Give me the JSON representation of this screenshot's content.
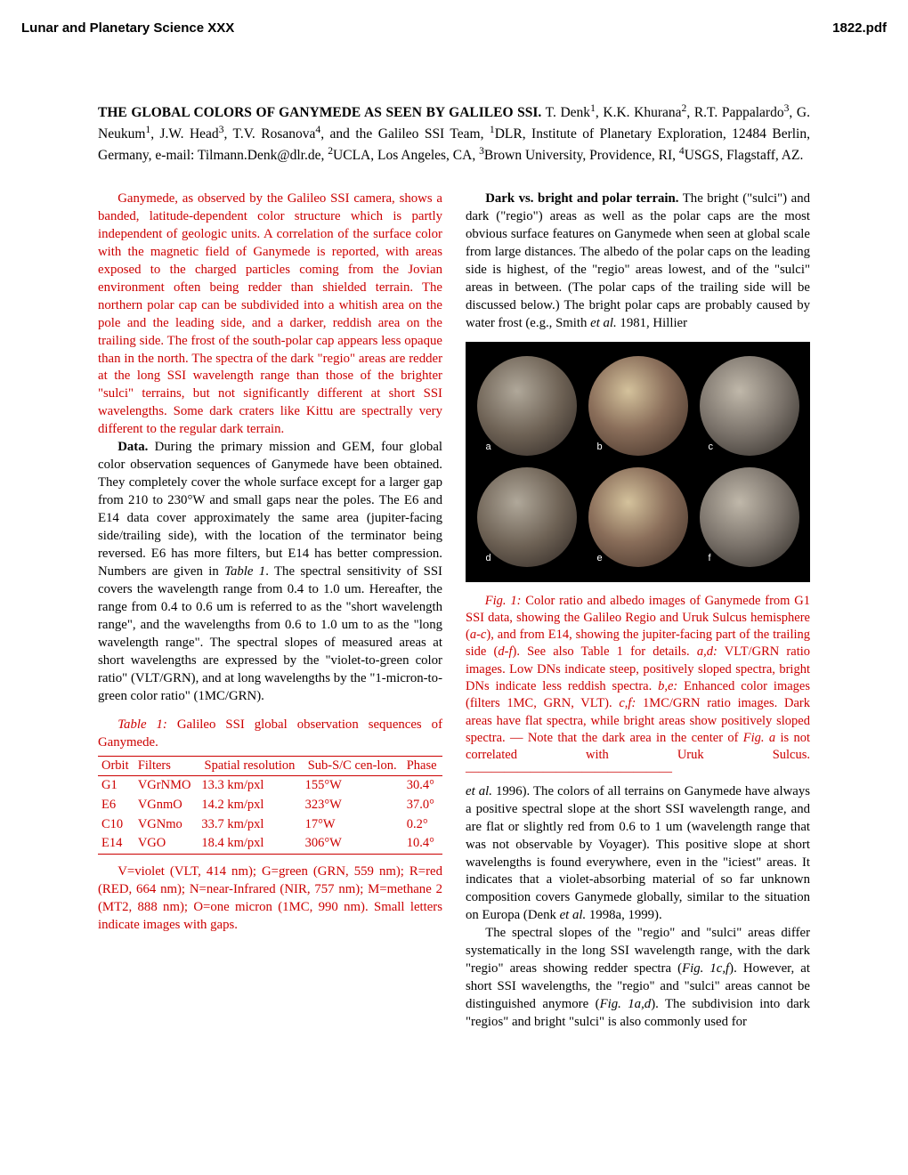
{
  "header": {
    "left": "Lunar and Planetary Science XXX",
    "right": "1822.pdf"
  },
  "title": {
    "main": "THE GLOBAL COLORS OF GANYMEDE AS SEEN BY GALILEO SSI.",
    "authors_html": "  T. Denk<sup>1</sup>, K.K. Khurana<sup>2</sup>, R.T. Pappalardo<sup>3</sup>, G. Neukum<sup>1</sup>, J.W. Head<sup>3</sup>, T.V. Rosanova<sup>4</sup>, and the Galileo SSI Team, <sup>1</sup>DLR, Institute of Planetary Exploration, 12484 Berlin, Germany, e-mail: Tilmann.Denk@dlr.de, <sup>2</sup>UCLA, Los Angeles, CA, <sup>3</sup>Brown University, Providence, RI, <sup>4</sup>USGS, Flagstaff, AZ."
  },
  "abstract": "Ganymede, as observed by the Galileo SSI camera, shows a banded, latitude-dependent color structure which is partly independent of geologic units. A correlation of the surface color with the magnetic field of Ganymede is reported, with areas exposed to the charged particles coming from the Jovian environment often being redder than shielded terrain. The northern polar cap can be subdivided into a whitish area on the pole and the leading side, and a darker, reddish area on the trailing side. The frost of the south-polar cap appears less opaque than in the north. The spectra of the dark \"regio\" areas are redder at the long SSI wavelength range than those of the brighter \"sulci\" terrains, but not significantly different at short SSI wavelengths. Some dark craters like Kittu are spectrally very different to the regular dark terrain.",
  "data_heading": "Data.",
  "data_body": " During the primary mission and GEM, four global color observation sequences of Ganymede have been obtained. They completely cover the whole surface except for a larger gap from 210 to 230°W and small gaps near the poles. The E6 and E14 data cover approximately the same area (jupiter-facing side/trailing side), with the location of the terminator being reversed. E6 has more filters, but E14 has better compression. Numbers are given in <span class=\"italic\">Table 1</span>. The spectral sensitivity of SSI covers the wavelength range from 0.4 to 1.0 um. Hereafter, the range from 0.4 to 0.6 um is referred to as the \"short wavelength range\", and the wavelengths from 0.6 to 1.0 um to as the \"long wavelength range\". The spectral slopes of measured areas at short wavelengths are expressed by the \"violet-to-green color ratio\" (VLT/GRN), and at long wavelengths by the \"1-micron-to-green color ratio\" (1MC/GRN).",
  "table1": {
    "caption_lead": "Table 1:",
    "caption_rest": " Galileo SSI global observation sequences of Ganymede.",
    "columns": [
      "Orbit",
      "Filters",
      "Spatial resolution",
      "Sub-S/C cen-lon.",
      "Phase"
    ],
    "rows": [
      [
        "G1",
        "VGrNMO",
        "13.3 km/pxl",
        "155°W",
        "30.4°"
      ],
      [
        "E6",
        "VGnmO",
        "14.2 km/pxl",
        "323°W",
        "37.0°"
      ],
      [
        "C10",
        "VGNmo",
        "33.7 km/pxl",
        "17°W",
        "0.2°"
      ],
      [
        "E14",
        "VGO",
        "18.4 km/pxl",
        "306°W",
        "10.4°"
      ]
    ],
    "note": "V=violet (VLT, 414 nm); G=green (GRN, 559 nm); R=red (RED, 664 nm); N=near-Infrared (NIR, 757 nm); M=methane 2 (MT2, 888 nm); O=one micron (1MC, 990 nm). Small letters indicate images with gaps."
  },
  "darkbright_heading": "Dark vs. bright and polar terrain.",
  "darkbright_body": " The bright (\"sulci\") and dark (\"regio\") areas as well as the polar caps are the most obvious surface features on Ganymede when seen at global scale from large distances. The albedo of the polar caps on the leading side is highest, of the \"regio\" areas lowest, and of the \"sulci\" areas in between. (The polar caps of the trailing side will be discussed below.) The bright polar caps are probably caused by water frost (e.g., Smith <span class=\"italic\">et al.</span> 1981, Hillier",
  "fig1": {
    "globes": [
      "a",
      "b",
      "c",
      "d",
      "e",
      "f"
    ],
    "caption_lead": "Fig. 1:",
    "caption_rest": " Color ratio and albedo images of Ganymede from G1 SSI data, showing the Galileo Regio and Uruk Sulcus hemisphere (<span class=\"italic\">a-c</span>), and from E14, showing the jupiter-facing part of the trailing side (<span class=\"italic\">d-f</span>). See also Table 1 for details. <span class=\"italic\">a,d:</span> VLT/GRN ratio images. Low DNs indicate steep, positively sloped spectra, bright DNs indicate less reddish spectra. <span class=\"italic\">b,e:</span> Enhanced color images (filters 1MC, GRN, VLT). <span class=\"italic\">c,f:</span> 1MC/GRN ratio images. Dark areas have flat spectra, while bright areas show positively sloped spectra. — Note that the dark area in the center of <span class=\"italic\">Fig. a</span> is not correlated with Uruk Sulcus. ————————————————"
  },
  "col2_continued": "<span class=\"italic\">et al.</span> 1996). The colors of all terrains on Ganymede have always a positive spectral slope at the short SSI wavelength range, and are flat or slightly red from 0.6 to 1 um (wavelength range that was not observable by Voyager). This positive slope at short wavelengths is found everywhere, even in the \"iciest\" areas. It indicates that a violet-absorbing material of so far unknown composition covers Ganymede globally, similar to the situation on Europa (Denk <span class=\"italic\">et al.</span> 1998a, 1999).",
  "col2_para2": "The spectral slopes of the \"regio\" and \"sulci\" areas differ systematically in the long SSI wavelength range, with the dark \"regio\" areas showing redder spectra (<span class=\"italic\">Fig. 1c,f</span>). However, at short SSI wavelengths, the \"regio\" and \"sulci\" areas cannot be distinguished anymore (<span class=\"italic\">Fig. 1a,d</span>). The subdivision into dark \"regios\" and bright \"sulci\" is also commonly used for"
}
